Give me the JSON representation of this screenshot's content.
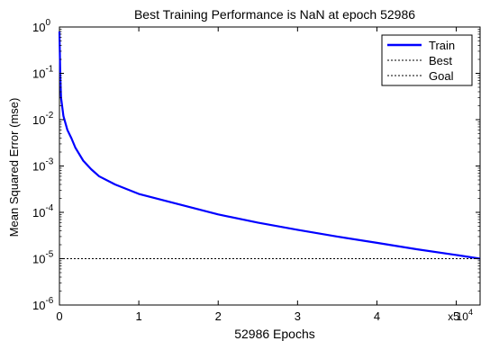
{
  "chart_data": {
    "type": "line",
    "title": "Best Training Performance is NaN at epoch 52986",
    "xlabel": "52986 Epochs",
    "ylabel": "Mean Squared Error  (mse)",
    "x_scale": "linear",
    "y_scale": "log",
    "xlim": [
      0,
      5.3
    ],
    "ylim": [
      1e-06,
      1
    ],
    "x_ticks": [
      {
        "value": 0,
        "label": "0"
      },
      {
        "value": 1,
        "label": "1"
      },
      {
        "value": 2,
        "label": "2"
      },
      {
        "value": 3,
        "label": "3"
      },
      {
        "value": 4,
        "label": "4"
      },
      {
        "value": 5,
        "label": "5"
      }
    ],
    "x_tick_multiplier": {
      "base": "x 10",
      "exp": "4"
    },
    "y_ticks": [
      {
        "value": 1,
        "base": "10",
        "exp": "0"
      },
      {
        "value": 0.1,
        "base": "10",
        "exp": "-1"
      },
      {
        "value": 0.01,
        "base": "10",
        "exp": "-2"
      },
      {
        "value": 0.001,
        "base": "10",
        "exp": "-3"
      },
      {
        "value": 0.0001,
        "base": "10",
        "exp": "-4"
      },
      {
        "value": 1e-05,
        "base": "10",
        "exp": "-5"
      },
      {
        "value": 1e-06,
        "base": "10",
        "exp": "-6"
      }
    ],
    "grid": false,
    "legend": {
      "position": "top-right"
    },
    "series": [
      {
        "name": "Train",
        "color": "#0000ff",
        "style": "solid",
        "x": [
          0,
          0.01,
          0.02,
          0.05,
          0.1,
          0.15,
          0.2,
          0.3,
          0.4,
          0.5,
          0.7,
          1.0,
          1.5,
          2.0,
          2.5,
          3.0,
          3.5,
          4.0,
          4.5,
          5.0,
          5.3
        ],
        "y": [
          0.8,
          0.1,
          0.03,
          0.012,
          0.006,
          0.004,
          0.0025,
          0.0013,
          0.00085,
          0.0006,
          0.0004,
          0.00025,
          0.00015,
          9e-05,
          6e-05,
          4.2e-05,
          3e-05,
          2.2e-05,
          1.6e-05,
          1.2e-05,
          1e-05
        ]
      },
      {
        "name": "Best",
        "color": "#000000",
        "style": "dotted",
        "x": [],
        "y": []
      },
      {
        "name": "Goal",
        "color": "#000000",
        "style": "dotted",
        "x": [
          0,
          5.3
        ],
        "y": [
          1e-05,
          1e-05
        ]
      }
    ]
  }
}
